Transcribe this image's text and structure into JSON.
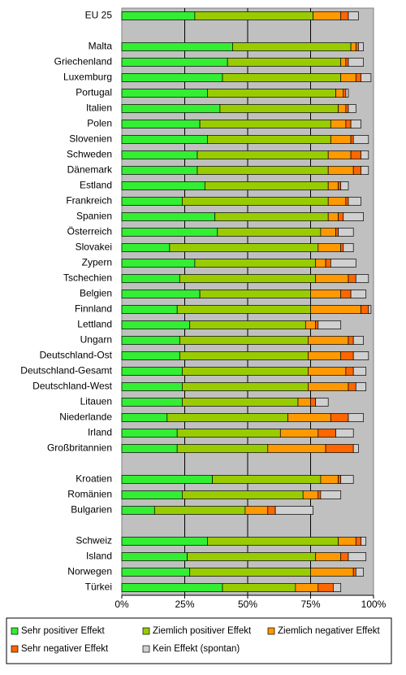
{
  "chart_data": {
    "type": "stacked_barh",
    "categories": [
      "EU 25",
      null,
      "Malta",
      "Griechenland",
      "Luxemburg",
      "Portugal",
      "Italien",
      "Polen",
      "Slovenien",
      "Schweden",
      "Dänemark",
      "Estland",
      "Frankreich",
      "Spanien",
      "Österreich",
      "Slovakei",
      "Zypern",
      "Tschechien",
      "Belgien",
      "Finnland",
      "Lettland",
      "Ungarn",
      "Deutschland-Ost",
      "Deutschland-Gesamt",
      "Deutschland-West",
      "Litauen",
      "Niederlande",
      "Irland",
      "Großbritannien",
      null,
      "Kroatien",
      "Romänien",
      "Bulgarien",
      null,
      "Schweiz",
      "Island",
      "Norwegen",
      "Türkei"
    ],
    "series": [
      {
        "name": "Sehr positiver Effekt",
        "color": "#33ee33",
        "values": [
          29,
          null,
          44,
          42,
          40,
          34,
          39,
          31,
          34,
          30,
          30,
          33,
          24,
          37,
          38,
          19,
          29,
          23,
          31,
          22,
          27,
          23,
          23,
          24,
          24,
          24,
          18,
          22,
          22,
          null,
          36,
          24,
          13,
          null,
          34,
          26,
          27,
          40
        ]
      },
      {
        "name": "Ziemlich positiver Effekt",
        "color": "#99cc00",
        "values": [
          47,
          null,
          47,
          45,
          47,
          51,
          47,
          52,
          49,
          52,
          52,
          49,
          58,
          45,
          41,
          59,
          48,
          54,
          44,
          53,
          46,
          51,
          51,
          50,
          50,
          46,
          48,
          41,
          36,
          null,
          43,
          48,
          36,
          null,
          52,
          51,
          48,
          29
        ]
      },
      {
        "name": "Ziemlich negativer Effekt",
        "color": "#ff9900",
        "values": [
          11,
          null,
          2,
          2,
          6,
          3,
          3,
          6,
          8,
          9,
          10,
          4,
          7,
          4,
          6,
          9,
          4,
          13,
          12,
          20,
          4,
          16,
          13,
          15,
          16,
          5,
          17,
          15,
          23,
          null,
          7,
          6,
          9,
          null,
          7,
          10,
          17,
          9
        ]
      },
      {
        "name": "Sehr negativer Effekt",
        "color": "#ff6600",
        "values": [
          3,
          null,
          1,
          1,
          2,
          1,
          1,
          2,
          1,
          4,
          3,
          1,
          1,
          2,
          1,
          1,
          2,
          3,
          4,
          3,
          1,
          2,
          5,
          3,
          3,
          2,
          7,
          7,
          11,
          null,
          1,
          1,
          3,
          null,
          2,
          3,
          1,
          6
        ]
      },
      {
        "name": "Kein Effekt (spontan)",
        "color": "#d0d0d0",
        "values": [
          4,
          null,
          2,
          6,
          4,
          1,
          3,
          4,
          6,
          3,
          3,
          3,
          5,
          8,
          6,
          4,
          10,
          5,
          6,
          1,
          9,
          4,
          6,
          5,
          4,
          5,
          6,
          7,
          2,
          null,
          5,
          8,
          15,
          null,
          2,
          7,
          3,
          3
        ]
      }
    ],
    "xlim": [
      0,
      100
    ],
    "xticks": [
      {
        "value": 0,
        "label": "0%"
      },
      {
        "value": 25,
        "label": "25%"
      },
      {
        "value": 50,
        "label": "50%"
      },
      {
        "value": 75,
        "label": "75%"
      },
      {
        "value": 100,
        "label": "100%"
      }
    ],
    "grid": true,
    "plot_background": "#c0c0c0",
    "legend": "bottom"
  }
}
